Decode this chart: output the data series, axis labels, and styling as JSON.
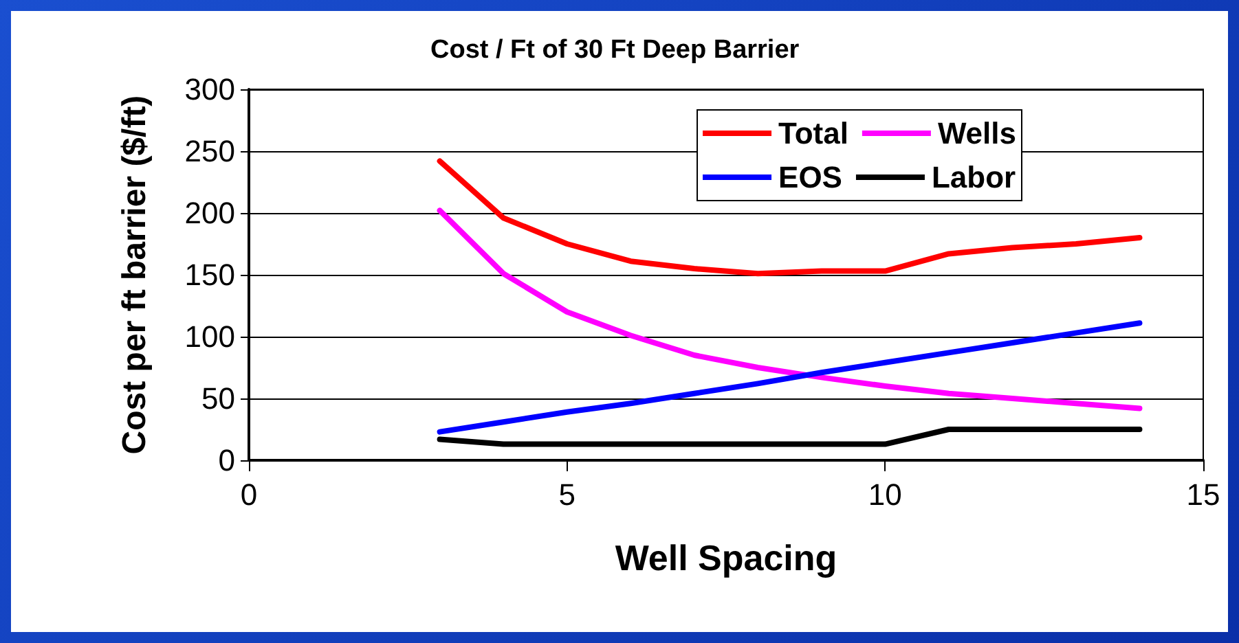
{
  "chart_data": {
    "type": "line",
    "title": "Cost / Ft of 30 Ft Deep Barrier",
    "xlabel": "Well Spacing",
    "ylabel": "Cost per ft barrier ($/ft)",
    "x": [
      3,
      4,
      5,
      6,
      7,
      8,
      9,
      10,
      11,
      12,
      13,
      14
    ],
    "series": [
      {
        "name": "Total",
        "color": "#ff0000",
        "values": [
          242,
          196,
          175,
          161,
          155,
          151,
          153,
          153,
          167,
          172,
          175,
          180
        ]
      },
      {
        "name": "Wells",
        "color": "#ff00ff",
        "values": [
          202,
          151,
          120,
          101,
          85,
          75,
          67,
          60,
          54,
          50,
          46,
          42
        ]
      },
      {
        "name": "EOS",
        "color": "#0000ff",
        "values": [
          23,
          31,
          39,
          46,
          54,
          62,
          71,
          79,
          87,
          95,
          103,
          111
        ]
      },
      {
        "name": "Labor",
        "color": "#000000",
        "values": [
          17,
          13,
          13,
          13,
          13,
          13,
          13,
          13,
          25,
          25,
          25,
          25
        ]
      }
    ],
    "xlim": [
      0,
      15
    ],
    "xticks": [
      0,
      5,
      10,
      15
    ],
    "ylim": [
      0,
      300
    ],
    "yticks": [
      0,
      50,
      100,
      150,
      200,
      250,
      300
    ],
    "grid": "y",
    "legend": "top right",
    "marker": "none",
    "line_style": "solid"
  }
}
